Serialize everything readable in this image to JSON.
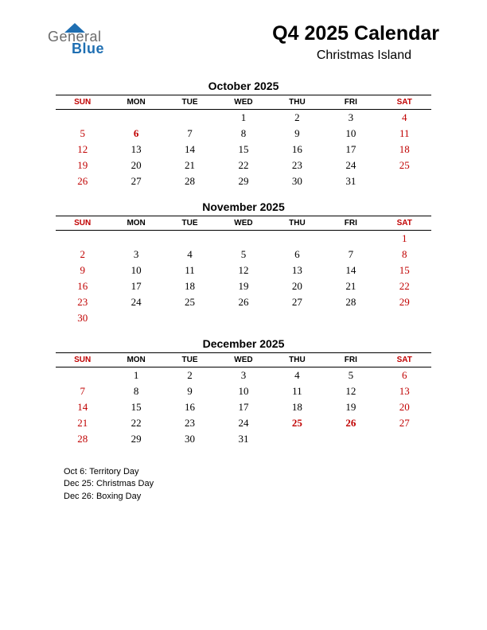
{
  "logo": {
    "general": "General",
    "blue": "Blue",
    "shape_color": "#1f6fb2"
  },
  "title": "Q4 2025 Calendar",
  "subtitle": "Christmas Island",
  "day_headers": [
    "SUN",
    "MON",
    "TUE",
    "WED",
    "THU",
    "FRI",
    "SAT"
  ],
  "months": [
    {
      "name": "October 2025",
      "weeks": [
        [
          "",
          "",
          "",
          "1",
          "2",
          "3",
          "4"
        ],
        [
          "5",
          "6",
          "7",
          "8",
          "9",
          "10",
          "11"
        ],
        [
          "12",
          "13",
          "14",
          "15",
          "16",
          "17",
          "18"
        ],
        [
          "19",
          "20",
          "21",
          "22",
          "23",
          "24",
          "25"
        ],
        [
          "26",
          "27",
          "28",
          "29",
          "30",
          "31",
          ""
        ]
      ],
      "holidays": [
        "6"
      ]
    },
    {
      "name": "November 2025",
      "weeks": [
        [
          "",
          "",
          "",
          "",
          "",
          "",
          "1"
        ],
        [
          "2",
          "3",
          "4",
          "5",
          "6",
          "7",
          "8"
        ],
        [
          "9",
          "10",
          "11",
          "12",
          "13",
          "14",
          "15"
        ],
        [
          "16",
          "17",
          "18",
          "19",
          "20",
          "21",
          "22"
        ],
        [
          "23",
          "24",
          "25",
          "26",
          "27",
          "28",
          "29"
        ],
        [
          "30",
          "",
          "",
          "",
          "",
          "",
          ""
        ]
      ],
      "holidays": []
    },
    {
      "name": "December 2025",
      "weeks": [
        [
          "",
          "1",
          "2",
          "3",
          "4",
          "5",
          "6"
        ],
        [
          "7",
          "8",
          "9",
          "10",
          "11",
          "12",
          "13"
        ],
        [
          "14",
          "15",
          "16",
          "17",
          "18",
          "19",
          "20"
        ],
        [
          "21",
          "22",
          "23",
          "24",
          "25",
          "26",
          "27"
        ],
        [
          "28",
          "29",
          "30",
          "31",
          "",
          "",
          ""
        ]
      ],
      "holidays": [
        "25",
        "26"
      ]
    }
  ],
  "holiday_list": [
    "Oct 6: Territory Day",
    "Dec 25: Christmas Day",
    "Dec 26: Boxing Day"
  ],
  "style": {
    "weekend_color": "#c00000",
    "text_color": "#000000",
    "background": "#ffffff",
    "header_font": "Arial",
    "body_font": "Georgia",
    "month_title_fontsize": 14,
    "dayheader_fontsize": 10,
    "date_fontsize": 13,
    "title_fontsize": 25,
    "subtitle_fontsize": 16,
    "holidaylist_fontsize": 11
  }
}
